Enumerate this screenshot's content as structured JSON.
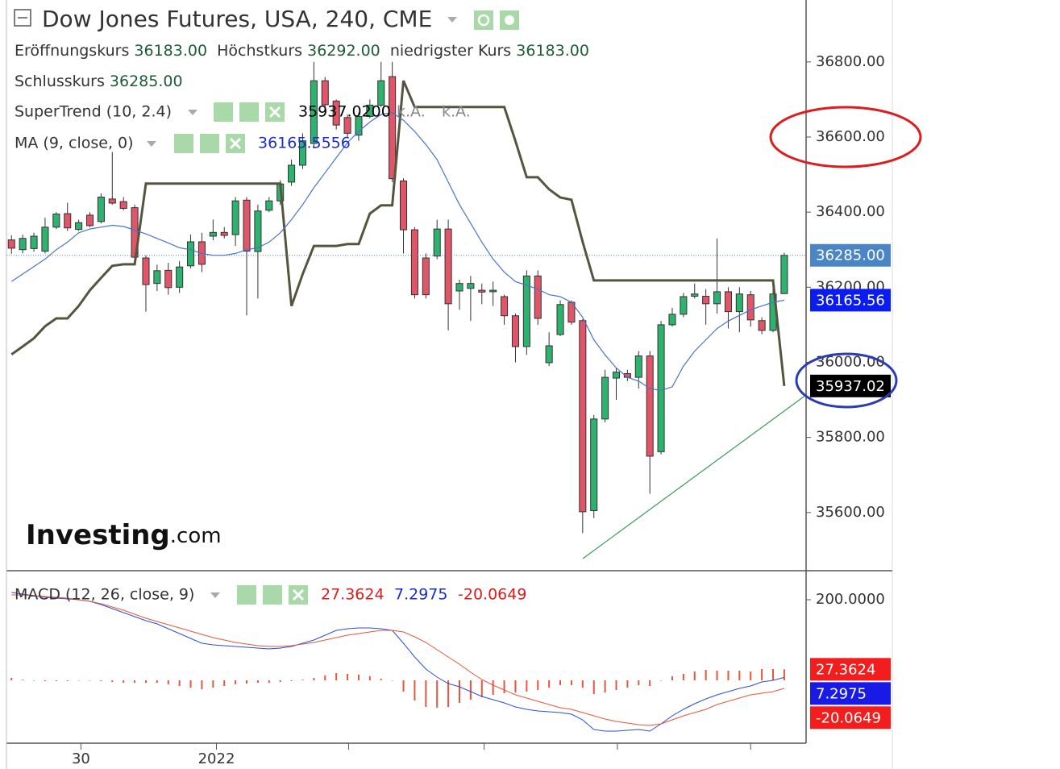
{
  "header": {
    "title": "Dow Jones Futures, USA, 240, CME",
    "ohlc_legend": [
      {
        "label": "Eröffnungskurs",
        "value": "36183.00"
      },
      {
        "label": "Höchstkurs",
        "value": "36292.00"
      },
      {
        "label": "niedrigster Kurs",
        "value": "36183.00"
      },
      {
        "label": "Schlusskurs",
        "value": "36285.00"
      }
    ],
    "watermark": [
      "Investing",
      ".com"
    ]
  },
  "chart_data": [
    {
      "type": "candlestick",
      "xlim": [
        -0.45,
        70.95
      ],
      "ylim": [
        35445,
        36965
      ],
      "yticks": [
        {
          "value": 35600,
          "label": "35600.00"
        },
        {
          "value": 35800,
          "label": "35800.00"
        },
        {
          "value": 36000,
          "label": "36000.00"
        },
        {
          "value": 36200,
          "label": "36200.00"
        },
        {
          "value": 36400,
          "label": "36400.00"
        },
        {
          "value": 36600,
          "label": "36600.00"
        },
        {
          "value": 36800,
          "label": "36800.00"
        }
      ],
      "up_color": "#2db36f",
      "down_color": "#e05567",
      "open": [
        36326,
        36300,
        36303,
        36296,
        36360,
        36396,
        36354,
        36392,
        36375,
        36435,
        36428,
        36412,
        36278,
        36210,
        36245,
        36200,
        36257,
        36321,
        36336,
        36346,
        36340,
        36432,
        36295,
        36405,
        36430,
        36480,
        36525,
        36583,
        36750,
        36696,
        36652,
        36605,
        36655,
        36685,
        36761,
        36483,
        36353,
        36278,
        36283,
        36355,
        36190,
        36197,
        36192,
        36188,
        36175,
        36124,
        36042,
        36230,
        35999,
        36074,
        36160,
        36111,
        35605,
        35849,
        35958,
        35970,
        35960,
        36017,
        35762,
        36100,
        36128,
        36176,
        36176,
        36156,
        36188,
        36135,
        36180,
        36111,
        36085,
        36183
      ],
      "high": [
        36338,
        36340,
        36345,
        36385,
        36400,
        36425,
        36380,
        36400,
        36450,
        36560,
        36440,
        36420,
        36285,
        36260,
        36265,
        36270,
        36340,
        36345,
        36380,
        36360,
        36440,
        36440,
        36420,
        36440,
        36485,
        36540,
        36610,
        36800,
        36760,
        36700,
        36660,
        36665,
        36700,
        36800,
        36800,
        36490,
        36360,
        36290,
        36380,
        36380,
        36220,
        36230,
        36210,
        36215,
        36180,
        36130,
        36245,
        36245,
        36080,
        36165,
        36165,
        36115,
        35860,
        35980,
        35985,
        35980,
        36030,
        36030,
        36110,
        36145,
        36185,
        36210,
        36195,
        36330,
        36200,
        36200,
        36190,
        36120,
        36200,
        36292
      ],
      "low": [
        36289,
        36290,
        36295,
        36290,
        36355,
        36350,
        36350,
        36360,
        36370,
        36420,
        36405,
        36270,
        36135,
        36190,
        36180,
        36185,
        36250,
        36240,
        36325,
        36330,
        36310,
        36125,
        36170,
        36400,
        36420,
        36470,
        36515,
        36570,
        36680,
        36620,
        36600,
        36590,
        36650,
        36680,
        36480,
        36290,
        36170,
        36170,
        36275,
        36085,
        36140,
        36110,
        36155,
        36150,
        36100,
        36000,
        36020,
        36100,
        35990,
        36070,
        36100,
        35545,
        35585,
        35840,
        35900,
        35950,
        35930,
        35650,
        35755,
        36095,
        36120,
        36170,
        36100,
        36130,
        36090,
        36080,
        36095,
        36075,
        36080,
        36183
      ],
      "close": [
        36304,
        36330,
        36336,
        36360,
        36395,
        36358,
        36372,
        36364,
        36440,
        36424,
        36410,
        36280,
        36207,
        36244,
        36199,
        36254,
        36321,
        36261,
        36346,
        36338,
        36430,
        36296,
        36403,
        36430,
        36475,
        36525,
        36590,
        36750,
        36686,
        36632,
        36610,
        36655,
        36685,
        36750,
        36489,
        36353,
        36180,
        36180,
        36355,
        36156,
        36210,
        36210,
        36187,
        36192,
        36124,
        36042,
        36230,
        36117,
        36044,
        36154,
        36107,
        35602,
        35849,
        35960,
        35974,
        35960,
        36017,
        35750,
        36100,
        36128,
        36175,
        36182,
        36156,
        36188,
        36135,
        36182,
        36113,
        36085,
        36182,
        36285
      ],
      "last_price_label": "36285.00",
      "price_badge_color": "#4a86c5",
      "overlays": [
        {
          "name": "SuperTrend (10, 2.4)",
          "color": "#55553f",
          "badge_color": "#000000",
          "last_label": "35937.02",
          "legend_values": [
            "35937.0200",
            "k.A.",
            "k.A."
          ],
          "values": [
            36021,
            36042,
            36064,
            36096,
            36117,
            36117,
            36150,
            36192,
            36225,
            36257,
            36261,
            36261,
            36476,
            36476,
            36476,
            36476,
            36476,
            36476,
            36476,
            36476,
            36476,
            36476,
            36476,
            36476,
            36476,
            36150,
            36235,
            36310,
            36310,
            36310,
            36315,
            36315,
            36396,
            36418,
            36418,
            36750,
            36680,
            36680,
            36680,
            36680,
            36680,
            36680,
            36680,
            36680,
            36680,
            36589,
            36493,
            36493,
            36461,
            36439,
            36433,
            36321,
            36218,
            36218,
            36218,
            36218,
            36218,
            36218,
            36218,
            36218,
            36218,
            36218,
            36218,
            36218,
            36218,
            36218,
            36218,
            36218,
            36218,
            35937.02
          ]
        },
        {
          "name": "MA (9, close, 0)",
          "color": "#4a74c9",
          "badge_color": "#0a1cf0",
          "last_label": "36165.56",
          "legend_values": [
            "36165.5556"
          ],
          "values": [
            36215,
            36235,
            36255,
            36275,
            36300,
            36320,
            36345,
            36355,
            36360,
            36365,
            36362,
            36352,
            36342,
            36330,
            36318,
            36305,
            36300,
            36290,
            36285,
            36285,
            36290,
            36300,
            36305,
            36320,
            36345,
            36380,
            36420,
            36465,
            36505,
            36545,
            36585,
            36615,
            36640,
            36660,
            36665,
            36645,
            36615,
            36580,
            36540,
            36480,
            36420,
            36370,
            36320,
            36275,
            36240,
            36215,
            36205,
            36195,
            36180,
            36175,
            36160,
            36120,
            36060,
            36020,
            35985,
            35960,
            35950,
            35930,
            35925,
            35935,
            35990,
            36030,
            36060,
            36090,
            36110,
            36125,
            36140,
            36150,
            36160,
            36165.5556
          ]
        }
      ]
    },
    {
      "type": "line",
      "indicator": "MACD (12, 26, close, 9)",
      "xlim": [
        -0.45,
        70.95
      ],
      "xticks": [
        {
          "value": 6.2,
          "label": "30"
        },
        {
          "value": 18.3,
          "label": "2022"
        },
        {
          "value": 30.1,
          "label": null
        },
        {
          "value": 42.2,
          "label": null
        },
        {
          "value": 54.1,
          "label": null
        },
        {
          "value": 66.0,
          "label": null
        }
      ],
      "ylim": [
        -156,
        272
      ],
      "yticks": [
        {
          "value": 200,
          "label": "200.0000"
        }
      ],
      "series": [
        {
          "style": "bar",
          "color": "#e8553c",
          "value_label": "27.3624",
          "values": [
            6,
            2,
            0,
            -2,
            -2,
            -2,
            0,
            0,
            -2,
            -4,
            -6,
            -6,
            -6,
            -6,
            -10,
            -14,
            -18,
            -22,
            -18,
            -14,
            -10,
            -8,
            -6,
            -6,
            -4,
            -2,
            2,
            6,
            12,
            18,
            16,
            14,
            10,
            4,
            0,
            -28,
            -50,
            -66,
            -68,
            -66,
            -56,
            -48,
            -42,
            -36,
            -32,
            -30,
            -28,
            -24,
            -18,
            -12,
            -12,
            -18,
            -34,
            -30,
            -24,
            -18,
            -12,
            -14,
            0,
            10,
            16,
            22,
            26,
            24,
            24,
            24,
            22,
            28,
            28,
            27.3624
          ]
        },
        {
          "style": "line",
          "color": "#2a4fd6",
          "value_label": "7.2975",
          "values": [
            218,
            214,
            210,
            206,
            204,
            202,
            200,
            196,
            188,
            178,
            168,
            158,
            148,
            140,
            128,
            116,
            104,
            92,
            88,
            86,
            84,
            82,
            80,
            78,
            80,
            84,
            92,
            100,
            112,
            124,
            128,
            130,
            130,
            128,
            124,
            92,
            58,
            28,
            8,
            -8,
            -16,
            -28,
            -40,
            -48,
            -56,
            -66,
            -72,
            -76,
            -78,
            -80,
            -84,
            -98,
            -122,
            -126,
            -126,
            -124,
            -122,
            -126,
            -108,
            -88,
            -72,
            -58,
            -46,
            -36,
            -28,
            -20,
            -14,
            -4,
            0,
            7.2975
          ]
        },
        {
          "style": "line",
          "color": "#e8553c",
          "value_label": "-20.0649",
          "values": [
            212,
            212,
            210,
            208,
            206,
            204,
            200,
            196,
            190,
            182,
            174,
            164,
            154,
            146,
            138,
            130,
            122,
            114,
            106,
            100,
            94,
            90,
            86,
            84,
            84,
            86,
            90,
            94,
            100,
            106,
            112,
            116,
            120,
            124,
            124,
            120,
            108,
            94,
            76,
            58,
            40,
            20,
            2,
            -12,
            -24,
            -36,
            -44,
            -52,
            -60,
            -68,
            -72,
            -80,
            -88,
            -96,
            -102,
            -106,
            -110,
            -112,
            -108,
            -98,
            -88,
            -80,
            -72,
            -60,
            -52,
            -44,
            -36,
            -32,
            -28,
            -20.0649
          ]
        }
      ]
    }
  ]
}
